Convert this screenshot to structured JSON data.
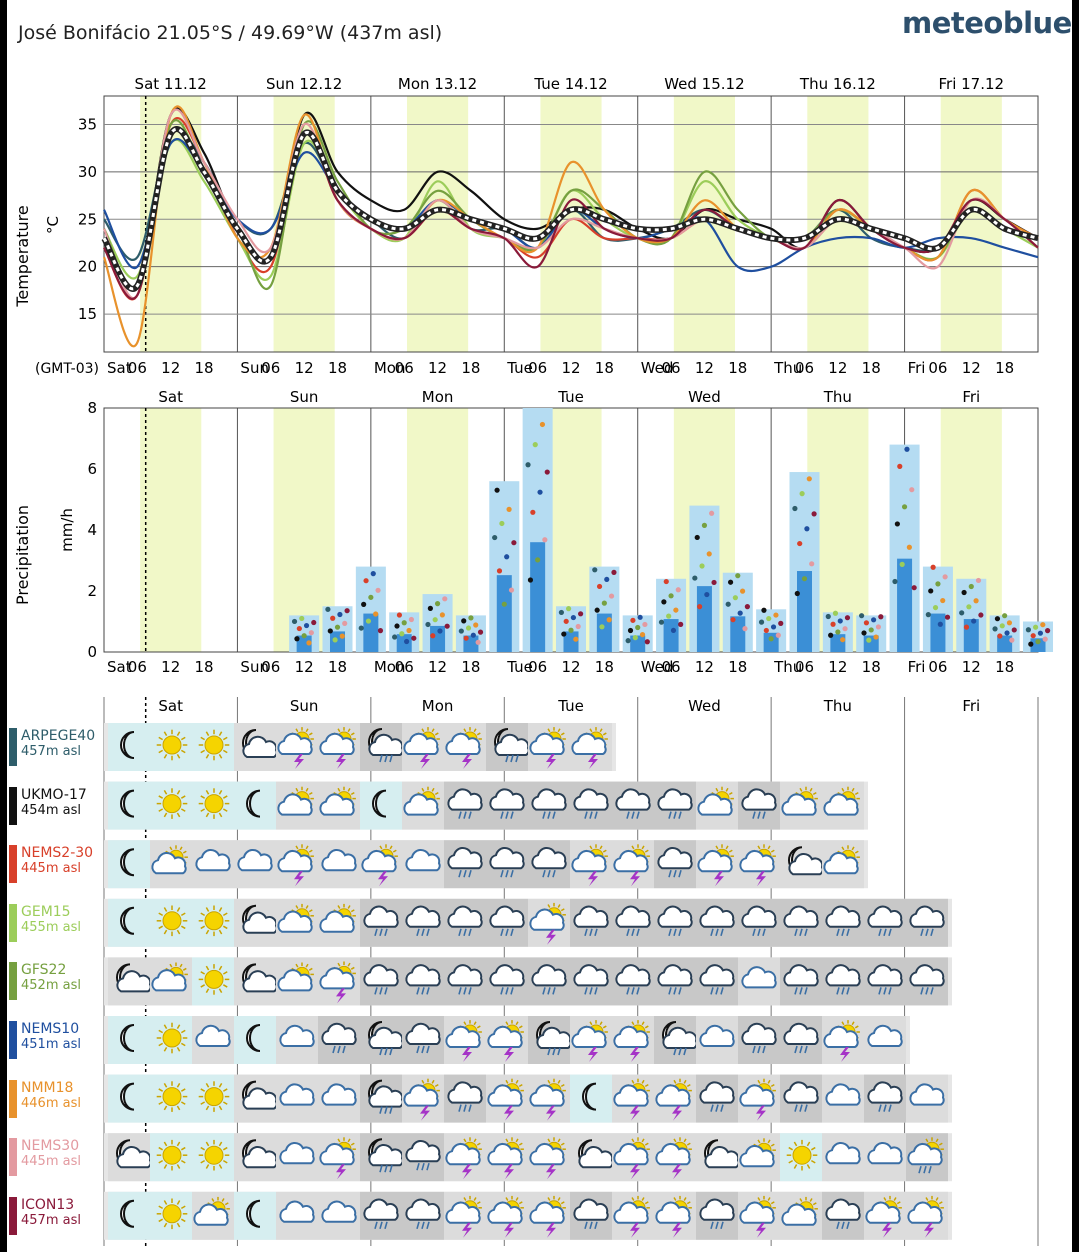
{
  "header": {
    "location": "José Bonifácio  21.05°S / 49.69°W (437m asl)",
    "logo": "meteoblue"
  },
  "days": [
    "Sat 11.12",
    "Sun 12.12",
    "Mon 13.12",
    "Tue 14.12",
    "Wed 15.12",
    "Thu 16.12",
    "Fri 17.12"
  ],
  "days_short": [
    "Sat",
    "Sun",
    "Mon",
    "Tue",
    "Wed",
    "Thu",
    "Fri"
  ],
  "hour_ticks": [
    "06",
    "12",
    "18"
  ],
  "timezone": "(GMT-03)",
  "colors": {
    "daylight": "#f1f8c8",
    "grid": "#555555",
    "now_line": "#000000",
    "sunny_icon": "#f5d400",
    "cloud_icon": "#3b6fa5",
    "thunder_icon": "#a533c7"
  },
  "models": [
    {
      "name": "ARPEGE40",
      "alt": "457m asl",
      "color": "#2e5d6a"
    },
    {
      "name": "UKMO-17",
      "alt": "454m asl",
      "color": "#111111"
    },
    {
      "name": "NEMS2-30",
      "alt": "445m asl",
      "color": "#d8402a"
    },
    {
      "name": "GEM15",
      "alt": "455m asl",
      "color": "#9ccd5a"
    },
    {
      "name": "GFS22",
      "alt": "452m asl",
      "color": "#76a040"
    },
    {
      "name": "NEMS10",
      "alt": "451m asl",
      "color": "#1f4f9f"
    },
    {
      "name": "NMM18",
      "alt": "446m asl",
      "color": "#e8922c"
    },
    {
      "name": "NEMS30",
      "alt": "445m asl",
      "color": "#e39aa0"
    },
    {
      "name": "ICON13",
      "alt": "457m asl",
      "color": "#8a1a3a"
    }
  ],
  "chart_data": [
    {
      "type": "line",
      "ylabel": "Temperature",
      "unit": "°C",
      "ylim": [
        11,
        38
      ],
      "yticks": [
        15,
        20,
        25,
        30,
        35
      ],
      "x_hours": [
        0,
        6,
        12,
        18,
        24,
        30,
        36,
        42,
        48,
        54,
        60,
        66,
        72,
        78,
        84,
        90,
        96,
        102,
        108,
        114,
        120,
        126,
        132,
        138,
        144,
        150,
        156,
        162,
        168
      ],
      "series": [
        {
          "name": "ARPEGE40",
          "values": [
            25,
            21,
            34,
            31,
            25,
            24,
            33,
            28,
            25,
            23,
            27,
            24,
            24,
            22,
            26,
            23,
            23,
            24,
            26,
            24,
            23,
            23,
            26,
            23,
            22,
            22,
            26,
            24,
            23
          ]
        },
        {
          "name": "UKMO-17",
          "values": [
            23,
            18,
            36,
            32,
            24,
            21,
            36,
            30,
            27,
            26,
            30,
            28,
            25,
            24,
            26,
            26,
            24,
            23,
            26,
            25,
            24,
            22,
            27,
            24,
            22,
            22,
            27,
            25,
            23
          ]
        },
        {
          "name": "NEMS2-30",
          "values": [
            22,
            17,
            35,
            31,
            23,
            20,
            34,
            27,
            24,
            23,
            26,
            24,
            23,
            21,
            25,
            23,
            23,
            23,
            25,
            24,
            23,
            22,
            26,
            24,
            22,
            21,
            28,
            25,
            23
          ]
        },
        {
          "name": "GEM15",
          "values": [
            24,
            19,
            33,
            29,
            23,
            19,
            33,
            28,
            24,
            23,
            29,
            24,
            23,
            22,
            28,
            25,
            23,
            23,
            29,
            25,
            23,
            22,
            25,
            24,
            22,
            21,
            26,
            24,
            22
          ]
        },
        {
          "name": "GFS22",
          "values": [
            24,
            18,
            35,
            30,
            24,
            18,
            35,
            29,
            24,
            24,
            28,
            25,
            23,
            22,
            28,
            26,
            23,
            23,
            30,
            26,
            23,
            23,
            26,
            24,
            22,
            21,
            27,
            25,
            22
          ]
        },
        {
          "name": "NEMS10",
          "values": [
            26,
            20,
            33,
            30,
            25,
            24,
            32,
            28,
            25,
            24,
            27,
            25,
            24,
            22,
            26,
            24,
            23,
            24,
            25,
            20,
            20,
            22,
            23,
            23,
            22,
            23,
            23,
            22,
            21
          ]
        },
        {
          "name": "NMM18",
          "values": [
            21,
            12,
            36,
            31,
            23,
            22,
            36,
            27,
            24,
            23,
            27,
            25,
            23,
            22,
            31,
            26,
            23,
            23,
            27,
            24,
            23,
            22,
            26,
            24,
            22,
            21,
            28,
            25,
            23
          ]
        },
        {
          "name": "NEMS30",
          "values": [
            24,
            17,
            36,
            31,
            25,
            22,
            35,
            27,
            24,
            23,
            27,
            24,
            23,
            22,
            25,
            24,
            23,
            23,
            25,
            24,
            23,
            22,
            25,
            24,
            22,
            20,
            27,
            25,
            22
          ]
        },
        {
          "name": "ICON13",
          "values": [
            22,
            17,
            34,
            30,
            24,
            21,
            34,
            27,
            24,
            23,
            26,
            24,
            23,
            20,
            27,
            24,
            23,
            23,
            26,
            24,
            23,
            22,
            27,
            24,
            22,
            22,
            27,
            25,
            22
          ]
        },
        {
          "name": "mean",
          "values": [
            23,
            18,
            34,
            30,
            24,
            21,
            34,
            28,
            25,
            24,
            26,
            25,
            24,
            23,
            26,
            25,
            24,
            24,
            25,
            24,
            23,
            23,
            25,
            24,
            23,
            22,
            26,
            24,
            23
          ]
        }
      ]
    },
    {
      "type": "bar",
      "ylabel": "Precipitation",
      "unit": "mm/h",
      "ylim": [
        0,
        8
      ],
      "yticks": [
        0,
        2,
        4,
        6,
        8
      ],
      "x_hours": [
        0,
        6,
        12,
        18,
        24,
        30,
        36,
        42,
        48,
        54,
        60,
        66,
        72,
        78,
        84,
        90,
        96,
        102,
        108,
        114,
        120,
        126,
        132,
        138,
        144,
        150,
        156,
        162,
        168
      ],
      "values": [
        0,
        0,
        0,
        0,
        0,
        0,
        1.2,
        1.5,
        2.8,
        1.3,
        1.9,
        1.2,
        5.6,
        8,
        1.5,
        2.8,
        1.2,
        2.4,
        4.8,
        2.6,
        1.4,
        5.9,
        1.3,
        1.2,
        6.8,
        2.8,
        2.4,
        1.2,
        1.0
      ]
    }
  ],
  "weather_rows": [
    [
      "moon",
      "sun",
      "sun",
      "moon-cloud",
      "sun-thunder",
      "sun-thunder",
      "moon-rain",
      "sun-thunder",
      "sun-thunder",
      "moon-rain",
      "sun-thunder",
      "sun-thunder"
    ],
    [
      "moon",
      "sun",
      "sun",
      "moon",
      "sun-cloud",
      "sun-cloud",
      "moon",
      "sun-cloud",
      "cloud-rain",
      "cloud-rain",
      "cloud-rain",
      "cloud-rain",
      "cloud-rain",
      "cloud-rain",
      "sun-cloud",
      "cloud-rain",
      "sun-cloud",
      "sun-cloud"
    ],
    [
      "moon",
      "sun-cloud",
      "cloud",
      "cloud",
      "sun-thunder",
      "cloud",
      "sun-thunder",
      "cloud",
      "cloud-rain",
      "cloud-rain",
      "cloud-rain",
      "sun-thunder",
      "sun-thunder",
      "cloud-rain",
      "sun-thunder",
      "sun-thunder",
      "moon-cloud",
      "sun-cloud"
    ],
    [
      "moon",
      "sun",
      "sun",
      "moon-cloud",
      "sun-cloud",
      "sun-cloud",
      "cloud-rain",
      "cloud-rain",
      "cloud-rain",
      "cloud-rain",
      "sun-thunder",
      "cloud-rain",
      "cloud-rain",
      "cloud-rain",
      "cloud-rain",
      "cloud-rain",
      "cloud-rain",
      "cloud-rain",
      "cloud-rain",
      "cloud-rain"
    ],
    [
      "moon-cloud",
      "sun-cloud",
      "sun",
      "moon-cloud",
      "sun-cloud",
      "sun-thunder",
      "cloud-rain",
      "cloud-rain",
      "cloud-rain",
      "cloud-rain",
      "cloud-rain",
      "cloud-rain",
      "cloud-rain",
      "cloud-rain",
      "cloud-rain",
      "cloud",
      "cloud-rain",
      "cloud-rain",
      "cloud-rain",
      "cloud-rain"
    ],
    [
      "moon",
      "sun",
      "cloud",
      "moon",
      "cloud",
      "cloud-rain",
      "moon-rain",
      "cloud-rain",
      "sun-thunder",
      "sun-thunder",
      "moon-rain",
      "sun-thunder",
      "sun-thunder",
      "moon-rain",
      "cloud",
      "cloud-rain",
      "cloud-rain",
      "sun-thunder",
      "cloud"
    ],
    [
      "moon",
      "sun",
      "sun",
      "moon-cloud",
      "cloud",
      "cloud",
      "moon-rain",
      "sun-thunder",
      "cloud-rain",
      "sun-thunder",
      "sun-thunder",
      "moon",
      "sun-thunder",
      "sun-thunder",
      "cloud-rain",
      "sun-thunder",
      "cloud-rain",
      "cloud",
      "cloud-rain",
      "cloud"
    ],
    [
      "moon-cloud",
      "sun",
      "sun",
      "moon-cloud",
      "cloud",
      "sun-thunder",
      "moon-rain",
      "cloud-rain",
      "sun-thunder",
      "sun-thunder",
      "sun-thunder",
      "moon-cloud",
      "sun-thunder",
      "sun-thunder",
      "moon-cloud",
      "sun-cloud",
      "sun",
      "cloud",
      "cloud",
      "sun-rain"
    ],
    [
      "moon",
      "sun",
      "sun-cloud",
      "moon",
      "cloud",
      "cloud",
      "cloud-rain",
      "cloud-rain",
      "sun-thunder",
      "sun-thunder",
      "sun-thunder",
      "cloud-rain",
      "sun-thunder",
      "sun-thunder",
      "cloud-rain",
      "sun-thunder",
      "sun-cloud",
      "cloud-rain",
      "sun-thunder",
      "sun-thunder"
    ]
  ]
}
